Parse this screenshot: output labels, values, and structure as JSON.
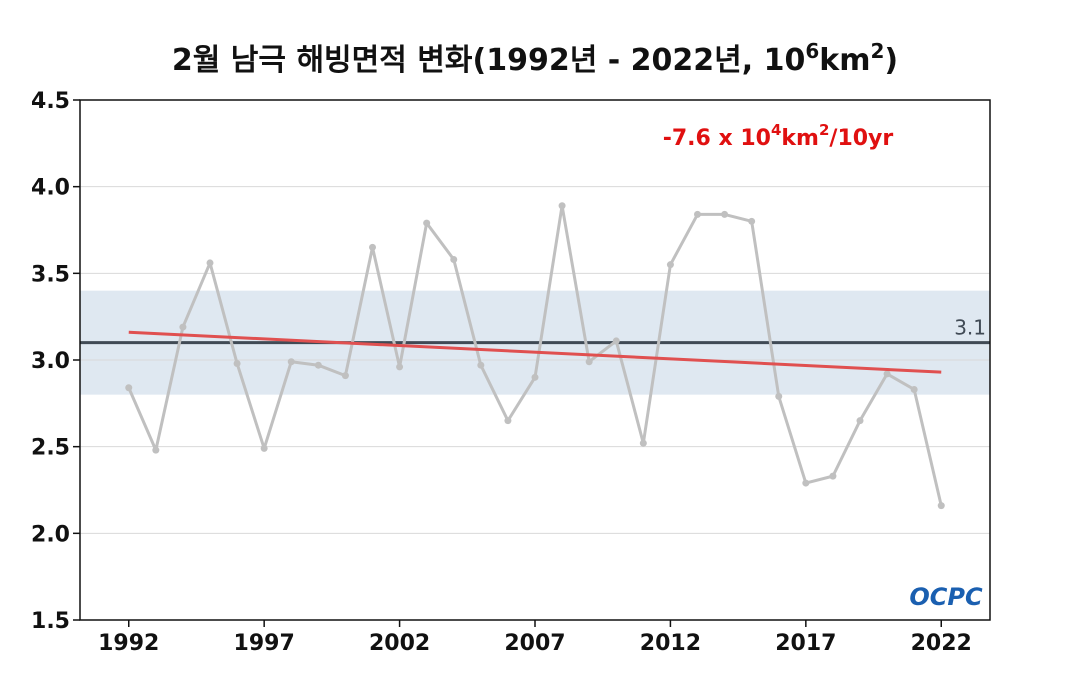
{
  "chart_data": {
    "type": "line",
    "title": "2월 남극 해빙면적 변화(1992년 - 2022년, 10",
    "title_sup1": "6",
    "title_mid": "km",
    "title_sup2": "2",
    "title_end": ")",
    "x": [
      1992,
      1993,
      1994,
      1995,
      1996,
      1997,
      1998,
      1999,
      2000,
      2001,
      2002,
      2003,
      2004,
      2005,
      2006,
      2007,
      2008,
      2009,
      2010,
      2011,
      2012,
      2013,
      2014,
      2015,
      2016,
      2017,
      2018,
      2019,
      2020,
      2021,
      2022
    ],
    "series": [
      {
        "values": [
          2.84,
          2.48,
          3.19,
          3.56,
          2.98,
          2.49,
          2.99,
          2.97,
          2.91,
          3.65,
          2.96,
          3.79,
          3.58,
          2.97,
          2.65,
          2.9,
          3.89,
          2.99,
          3.11,
          2.52,
          3.55,
          3.84,
          3.84,
          3.8,
          2.79,
          2.29,
          2.33,
          2.65,
          2.92,
          2.83,
          2.16
        ],
        "color": "#c0c0c0"
      }
    ],
    "trend": {
      "start": 3.16,
      "end": 2.93,
      "color": "#e05050"
    },
    "mean": {
      "value": 3.1,
      "label": "3.1",
      "color": "#404a55"
    },
    "band": {
      "low": 2.8,
      "high": 3.4,
      "color": "#dfe8f1"
    },
    "annotation": {
      "pre": "-7.6 x 10",
      "sup1": "4",
      "mid": "km",
      "sup2": "2",
      "post": "/10yr",
      "color": "#e01010"
    },
    "xticks": [
      1992,
      1997,
      2002,
      2007,
      2012,
      2017,
      2022
    ],
    "xtick_labels": [
      "1992",
      "1997",
      "2002",
      "2007",
      "2012",
      "2017",
      "2022"
    ],
    "yticks": [
      1.5,
      2.0,
      2.5,
      3.0,
      3.5,
      4.0,
      4.5
    ],
    "ytick_labels": [
      "1.5",
      "2.0",
      "2.5",
      "3.0",
      "3.5",
      "4.0",
      "4.5"
    ],
    "xlim": [
      1990.2,
      2023.8
    ],
    "ylim": [
      1.5,
      4.5
    ],
    "grid": true
  },
  "logo": {
    "text": "OCPC",
    "color": "#1a5fb0"
  }
}
